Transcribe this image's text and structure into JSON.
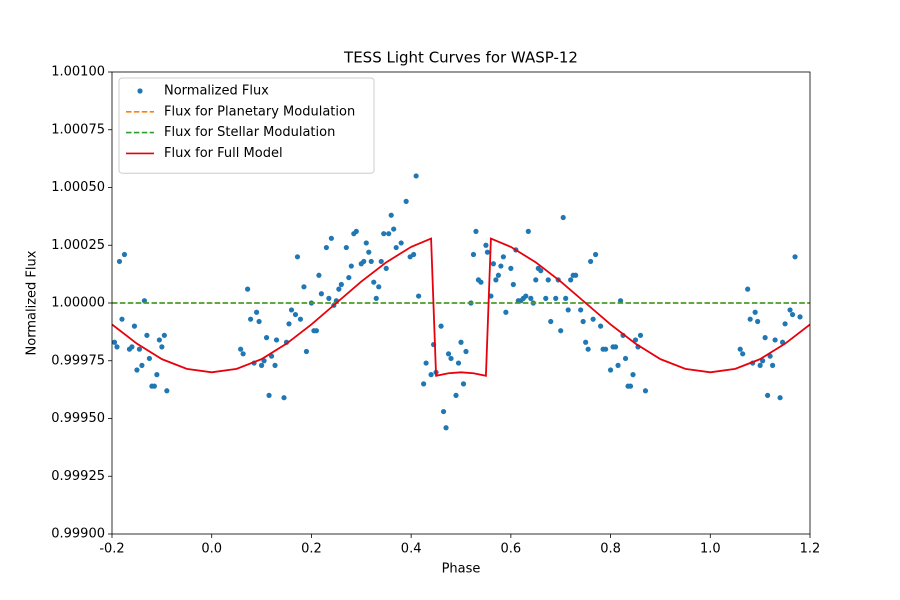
{
  "chart_data": {
    "type": "scatter",
    "title": "TESS Light Curves for WASP-12",
    "xlabel": "Phase",
    "ylabel": "Normalized Flux",
    "xlim": [
      -0.2,
      1.2
    ],
    "ylim": [
      0.999,
      1.001
    ],
    "xticks": [
      -0.2,
      {
        "value": 0,
        "label": "0.0"
      },
      0.2,
      0.4,
      0.6,
      0.8,
      {
        "value": 1,
        "label": "1.0"
      },
      1.2
    ],
    "yticks": [
      {
        "value": 0.999,
        "label": "0.99900"
      },
      {
        "value": 0.99925,
        "label": "0.99925"
      },
      {
        "value": 0.9995,
        "label": "0.99950"
      },
      {
        "value": 0.99975,
        "label": "0.99975"
      },
      {
        "value": 1,
        "label": "1.00000"
      },
      {
        "value": 1.00025,
        "label": "1.00025"
      },
      {
        "value": 1.0005,
        "label": "1.00050"
      },
      {
        "value": 1.00075,
        "label": "1.00075"
      },
      {
        "value": 1.001,
        "label": "1.00100"
      }
    ],
    "legend": "upper left",
    "series": [
      {
        "name": "Normalized Flux",
        "type": "scatter",
        "color": "#1f77b4",
        "x": [
          -0.195,
          -0.19,
          -0.185,
          -0.18,
          -0.175,
          -0.165,
          -0.16,
          -0.155,
          -0.15,
          -0.145,
          -0.14,
          -0.135,
          -0.13,
          -0.125,
          -0.12,
          -0.115,
          -0.11,
          -0.105,
          -0.1,
          -0.095,
          -0.09,
          0.058,
          0.063,
          0.072,
          0.078,
          0.085,
          0.09,
          0.095,
          0.1,
          0.105,
          0.11,
          0.115,
          0.12,
          0.127,
          0.13,
          0.145,
          0.15,
          0.155,
          0.16,
          0.168,
          0.172,
          0.178,
          0.185,
          0.19,
          0.2,
          0.205,
          0.21,
          0.215,
          0.22,
          0.23,
          0.235,
          0.24,
          0.245,
          0.25,
          0.255,
          0.26,
          0.27,
          0.275,
          0.28,
          0.285,
          0.29,
          0.3,
          0.305,
          0.31,
          0.315,
          0.32,
          0.325,
          0.33,
          0.335,
          0.34,
          0.345,
          0.35,
          0.355,
          0.36,
          0.365,
          0.37,
          0.38,
          0.39,
          0.398,
          0.405,
          0.41,
          0.415,
          0.425,
          0.43,
          0.44,
          0.445,
          0.45,
          0.46,
          0.465,
          0.47,
          0.475,
          0.48,
          0.49,
          0.495,
          0.5,
          0.505,
          0.51,
          0.52,
          0.525,
          0.53,
          0.535,
          0.54,
          0.55,
          0.553,
          0.56,
          0.565,
          0.57,
          0.575,
          0.58,
          0.585,
          0.59,
          0.6,
          0.605,
          0.61,
          0.615,
          0.62,
          0.625,
          0.63,
          0.635,
          0.64,
          0.645,
          0.65,
          0.655,
          0.66,
          0.67,
          0.675,
          0.68,
          0.69,
          0.695,
          0.7,
          0.705,
          0.71,
          0.715,
          0.72,
          0.725,
          0.73,
          0.74,
          0.745,
          0.75,
          0.755,
          0.76,
          0.765,
          0.77,
          0.78,
          0.785,
          0.79,
          0.8,
          0.805,
          0.81,
          0.815,
          0.82,
          0.825,
          0.83,
          0.835,
          0.84,
          0.845,
          0.85,
          0.855,
          0.86,
          0.87,
          1.06,
          1.065,
          1.075,
          1.08,
          1.085,
          1.09,
          1.095,
          1.1,
          1.105,
          1.11,
          1.115,
          1.12,
          1.125,
          1.13,
          1.14,
          1.145,
          1.15,
          1.16,
          1.165,
          1.17,
          1.18
        ],
        "values": [
          0.99983,
          0.99981,
          1.00018,
          0.99993,
          1.00021,
          0.9998,
          0.99981,
          0.9999,
          0.99971,
          0.9998,
          0.99973,
          1.00001,
          0.99986,
          0.99976,
          0.99964,
          0.99964,
          0.99969,
          0.99984,
          0.99981,
          0.99986,
          0.99962,
          0.9998,
          0.99978,
          1.00006,
          0.99993,
          0.99974,
          0.99996,
          0.99992,
          0.99973,
          0.99975,
          0.99985,
          0.9996,
          0.99977,
          0.99973,
          0.99984,
          0.99959,
          0.99983,
          0.99991,
          0.99997,
          0.99995,
          1.0002,
          0.99993,
          1.00007,
          0.99979,
          1,
          0.99988,
          0.99988,
          1.00012,
          1.00004,
          1.00024,
          1.00002,
          1.00028,
          0.99999,
          1.00001,
          1.00006,
          1.00008,
          1.00024,
          1.00011,
          1.00016,
          1.0003,
          1.00031,
          1.00017,
          1.00018,
          1.00026,
          1.00022,
          1.00018,
          1.00009,
          1.00002,
          1.00007,
          1.00018,
          1.0003,
          1.00015,
          1.0003,
          1.00038,
          1.00032,
          1.00024,
          1.00026,
          1.00044,
          1.0002,
          1.00021,
          1.00055,
          1.00003,
          0.99965,
          0.99974,
          0.99969,
          0.99982,
          0.9997,
          0.9999,
          0.99953,
          0.99946,
          0.99978,
          0.99976,
          0.9996,
          0.99974,
          0.99983,
          0.99965,
          0.99979,
          1,
          1.00021,
          1.00031,
          1.0001,
          1.00009,
          1.00025,
          1.00022,
          1.00003,
          1.00017,
          1.0001,
          1.00012,
          1.00016,
          1.0002,
          0.99996,
          1.00015,
          1.00008,
          1.00023,
          1.00001,
          1.00001,
          1.00002,
          1.00003,
          1.00031,
          1.00002,
          1,
          1.0001,
          1.00015,
          1.00014,
          1.00002,
          1.0001,
          0.99992,
          1.00002,
          1.0001,
          0.99988,
          1.00037,
          1.00002,
          0.99997,
          1.0001,
          1.00012,
          1.00012,
          0.99997,
          0.99992,
          0.99983,
          0.9998,
          1.00018,
          0.99993,
          1.00021,
          0.9999,
          0.9998,
          0.9998,
          0.99971,
          0.99981,
          0.99981,
          0.99973,
          1.00001,
          0.99986,
          0.99976,
          0.99964,
          0.99964,
          0.99969,
          0.99984,
          0.99981,
          0.99986,
          0.99962,
          0.9998,
          0.99978,
          1.00006,
          0.99993,
          0.99974,
          0.99996,
          0.99992,
          0.99973,
          0.99975,
          0.99985,
          0.9996,
          0.99977,
          0.99973,
          0.99984,
          0.99959,
          0.99983,
          0.99991,
          0.99997,
          0.99995,
          1.0002,
          0.99994
        ]
      },
      {
        "name": "Flux for Planetary Modulation",
        "type": "line",
        "style": "dashed",
        "color": "#ff7f0e",
        "x": [
          -0.2,
          1.2
        ],
        "values": [
          1,
          1
        ]
      },
      {
        "name": "Flux for Stellar Modulation",
        "type": "line",
        "style": "dashed",
        "color": "#2ca02c",
        "x": [
          -0.2,
          1.2
        ],
        "values": [
          1,
          1
        ]
      },
      {
        "name": "Flux for Full Model",
        "type": "line",
        "style": "solid",
        "color": "#e8000b",
        "x": [
          -0.2,
          -0.15,
          -0.1,
          -0.05,
          0,
          0.05,
          0.1,
          0.15,
          0.2,
          0.25,
          0.3,
          0.35,
          0.4,
          0.44,
          0.45,
          0.475,
          0.5,
          0.525,
          0.55,
          0.56,
          0.6,
          0.65,
          0.7,
          0.75,
          0.8,
          0.85,
          0.9,
          0.95,
          1,
          1.05,
          1.1,
          1.15,
          1.2
        ],
        "values": [
          0.999907,
          0.999824,
          0.999757,
          0.999715,
          0.9997,
          0.999715,
          0.999757,
          0.999824,
          0.999907,
          1,
          1.000093,
          1.000176,
          1.000243,
          1.000279,
          0.999685,
          0.999696,
          0.9997,
          0.999696,
          0.999685,
          1.000279,
          1.000243,
          1.000176,
          1.000093,
          1,
          0.999907,
          0.999824,
          0.999757,
          0.999715,
          0.9997,
          0.999715,
          0.999757,
          0.999824,
          0.999907
        ]
      }
    ]
  }
}
